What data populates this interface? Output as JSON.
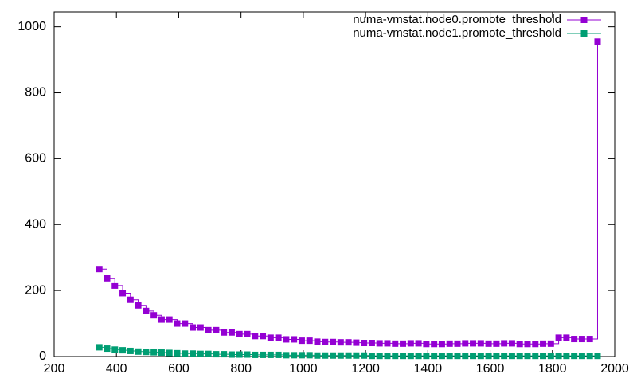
{
  "chart_data": {
    "type": "line",
    "style": "steps",
    "x": [
      345,
      370,
      395,
      420,
      445,
      470,
      495,
      520,
      545,
      570,
      595,
      620,
      645,
      670,
      695,
      720,
      745,
      770,
      795,
      820,
      845,
      870,
      895,
      920,
      945,
      970,
      995,
      1020,
      1045,
      1070,
      1095,
      1120,
      1145,
      1170,
      1195,
      1220,
      1245,
      1270,
      1295,
      1320,
      1345,
      1370,
      1395,
      1420,
      1445,
      1470,
      1495,
      1520,
      1545,
      1570,
      1595,
      1620,
      1645,
      1670,
      1695,
      1720,
      1745,
      1770,
      1795,
      1820,
      1845,
      1870,
      1895,
      1920,
      1945
    ],
    "series": [
      {
        "name": "numa-vmstat.node0.promote_threshold",
        "color": "#9400d3",
        "values": [
          265,
          237,
          215,
          192,
          172,
          155,
          138,
          125,
          112,
          112,
          100,
          100,
          88,
          88,
          80,
          80,
          73,
          73,
          68,
          68,
          62,
          62,
          57,
          57,
          52,
          52,
          48,
          48,
          45,
          44,
          44,
          43,
          43,
          42,
          41,
          41,
          40,
          40,
          39,
          39,
          40,
          40,
          38,
          38,
          38,
          39,
          39,
          40,
          40,
          40,
          39,
          39,
          40,
          40,
          38,
          38,
          38,
          39,
          39,
          57,
          57,
          53,
          53,
          53,
          955
        ]
      },
      {
        "name": "numa-vmstat.node1.promote_threshold",
        "color": "#009e73",
        "values": [
          28,
          24,
          21,
          19,
          17,
          15,
          14,
          13,
          12,
          11,
          10,
          9,
          9,
          8,
          8,
          7,
          7,
          6,
          6,
          6,
          5,
          5,
          5,
          5,
          4,
          4,
          4,
          4,
          3,
          3,
          3,
          3,
          3,
          3,
          3,
          2,
          2,
          2,
          2,
          2,
          2,
          2,
          2,
          2,
          2,
          2,
          2,
          2,
          2,
          2,
          2,
          2,
          2,
          2,
          2,
          2,
          2,
          2,
          2,
          2,
          2,
          2,
          2,
          2,
          2
        ]
      }
    ],
    "xlim": [
      200,
      2000
    ],
    "ylim": [
      0,
      1045
    ],
    "xticks": [
      200,
      400,
      600,
      800,
      1000,
      1200,
      1400,
      1600,
      1800,
      2000
    ],
    "yticks": [
      0,
      200,
      400,
      600,
      800,
      1000
    ],
    "legend": "top-right"
  }
}
